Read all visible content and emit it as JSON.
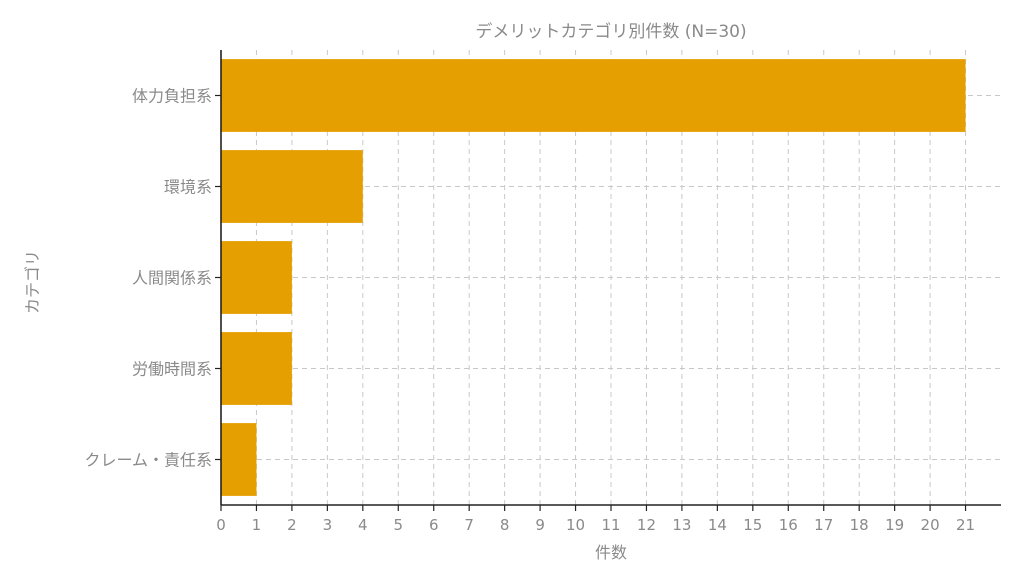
{
  "chart_data": {
    "type": "bar",
    "orientation": "horizontal",
    "title": "デメリットカテゴリ別件数 (N=30)",
    "xlabel": "件数",
    "ylabel": "カテゴリ",
    "categories": [
      "体力負担系",
      "環境系",
      "人間関係系",
      "労働時間系",
      "クレーム・責任系"
    ],
    "values": [
      21,
      4,
      2,
      2,
      1
    ],
    "xlim": [
      0,
      22
    ],
    "xticks": [
      0,
      1,
      2,
      3,
      4,
      5,
      6,
      7,
      8,
      9,
      10,
      11,
      12,
      13,
      14,
      15,
      16,
      17,
      18,
      19,
      20,
      21
    ],
    "grid": true,
    "bar_color": "#E69F00"
  }
}
